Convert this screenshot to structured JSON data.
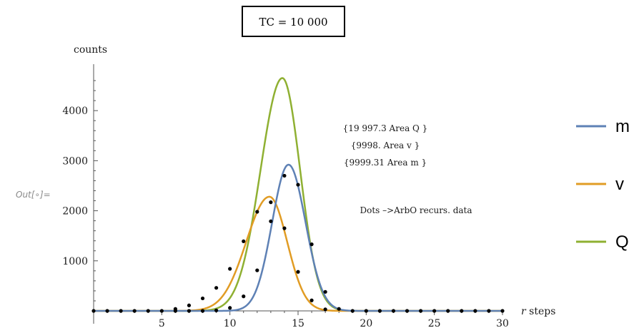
{
  "cell": {
    "out_label": "Out[∘]="
  },
  "chart_data": {
    "type": "line",
    "title": "TC = 10 000",
    "xlabel": "r steps",
    "xlabel_italic_part": "r",
    "xlabel_rest": " steps",
    "ylabel": "counts",
    "xlim": [
      0,
      30
    ],
    "ylim": [
      0,
      4700
    ],
    "xticks": [
      5,
      10,
      15,
      20,
      25,
      30
    ],
    "yticks": [
      1000,
      2000,
      3000,
      4000
    ],
    "grid": false,
    "legend_position": "right",
    "annotations": [
      "{19 997.3 Area Q }",
      "{9998. Area v }",
      "{9999.31 Area m }",
      "Dots –>ArbO recurs. data"
    ],
    "series": [
      {
        "name": "m",
        "color": "#5e81b5",
        "peak_x": 14.3,
        "peak_y": 2920,
        "sigma_left": 1.2,
        "sigma_right": 1.25
      },
      {
        "name": "v",
        "color": "#e19c24",
        "peak_x": 12.9,
        "peak_y": 2280,
        "sigma_left": 1.7,
        "sigma_right": 1.3
      },
      {
        "name": "Q",
        "color": "#8fb032",
        "peak_x": 13.85,
        "peak_y": 4650,
        "sigma_left": 1.6,
        "sigma_right": 1.3
      }
    ],
    "dots": [
      [
        0,
        0
      ],
      [
        1,
        0
      ],
      [
        2,
        0
      ],
      [
        3,
        0
      ],
      [
        4,
        0
      ],
      [
        5,
        0
      ],
      [
        6,
        0
      ],
      [
        7,
        0
      ],
      [
        8,
        0
      ],
      [
        9,
        10
      ],
      [
        10,
        60
      ],
      [
        11,
        290
      ],
      [
        12,
        810
      ],
      [
        13,
        1790
      ],
      [
        14,
        2700
      ],
      [
        15,
        2520
      ],
      [
        16,
        1330
      ],
      [
        17,
        380
      ],
      [
        18,
        40
      ],
      [
        19,
        0
      ],
      [
        20,
        0
      ],
      [
        21,
        0
      ],
      [
        22,
        0
      ],
      [
        23,
        0
      ],
      [
        24,
        0
      ],
      [
        25,
        0
      ],
      [
        26,
        0
      ],
      [
        27,
        0
      ],
      [
        28,
        0
      ],
      [
        29,
        0
      ],
      [
        30,
        0
      ],
      [
        6,
        40
      ],
      [
        7,
        110
      ],
      [
        8,
        250
      ],
      [
        9,
        460
      ],
      [
        10,
        840
      ],
      [
        11,
        1390
      ],
      [
        12,
        1980
      ],
      [
        13,
        2170
      ],
      [
        14,
        1650
      ],
      [
        15,
        780
      ],
      [
        16,
        210
      ],
      [
        17,
        30
      ]
    ]
  }
}
